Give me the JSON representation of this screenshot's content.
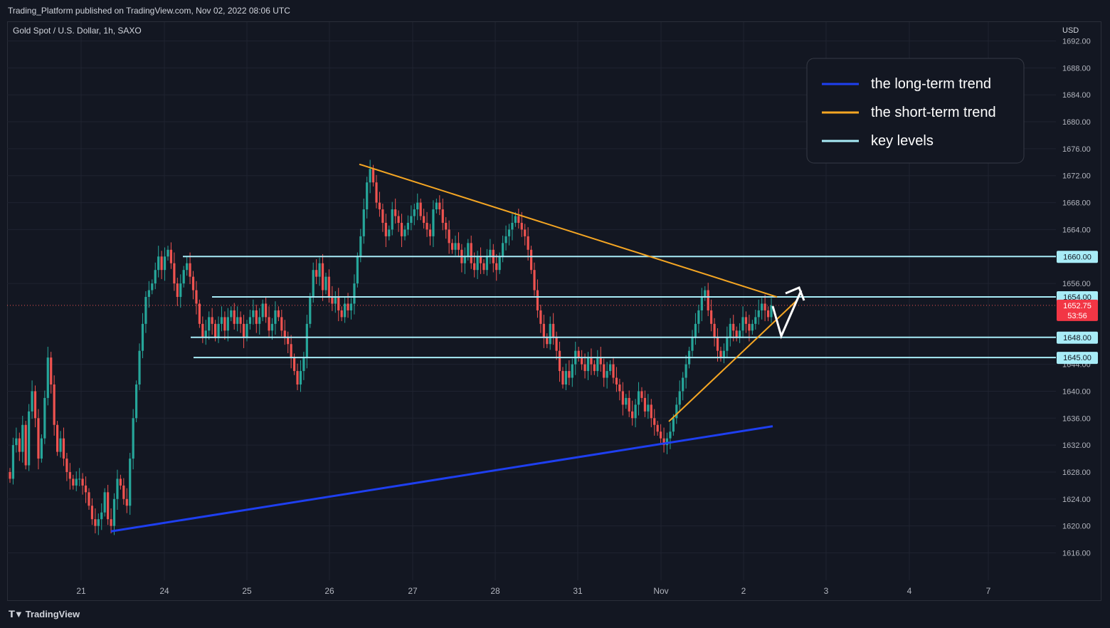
{
  "header": {
    "published_line": "Trading_Platform published on TradingView.com, Nov 02, 2022 08:06 UTC"
  },
  "footer": {
    "brand": "TradingView"
  },
  "colors": {
    "background": "#131722",
    "grid": "#1f2330",
    "up_candle": "#26a69a",
    "down_candle": "#ef5350",
    "long_trend": "#1e3ff0",
    "short_trend": "#f5a623",
    "key_level": "#a8ecf7",
    "price_tag": "#f23645",
    "arrow": "#ffffff"
  },
  "chart_data": {
    "type": "candlestick",
    "symbol_label": "Gold Spot / U.S. Dollar, 1h, SAXO",
    "currency": "USD",
    "y_range": [
      1612.5,
      1693
    ],
    "y_ticks": [
      1692,
      1688,
      1684,
      1680,
      1676,
      1672,
      1668,
      1664,
      1656,
      1644,
      1640,
      1636,
      1632,
      1628,
      1624,
      1620,
      1616
    ],
    "x_tick_labels": [
      "21",
      "24",
      "25",
      "26",
      "27",
      "28",
      "31",
      "Nov",
      "2",
      "3",
      "4",
      "7"
    ],
    "legend": {
      "placement": "top-right",
      "items": [
        {
          "label": "the long-term trend",
          "color": "#1e3ff0"
        },
        {
          "label": "the short-term trend",
          "color": "#f5a623"
        },
        {
          "label": "key levels",
          "color": "#a8ecf7"
        }
      ]
    },
    "key_levels": [
      1660.0,
      1654.0,
      1648.0,
      1645.0
    ],
    "key_level_labels": [
      "1660.00",
      "1654.00",
      "1648.00",
      "1645.00"
    ],
    "current_price": {
      "value": 1652.75,
      "label": "1652.75",
      "countdown": "53:56"
    },
    "long_term_trend": {
      "from": {
        "date": "Oct 21",
        "price": 1619.2
      },
      "to": {
        "date": "Nov 02",
        "price": 1634.8
      }
    },
    "short_term_trend_upper": {
      "from": {
        "date": "Oct 26",
        "price": 1673.7
      },
      "to": {
        "date": "Nov 02",
        "price": 1654.0
      }
    },
    "short_term_trend_lower": {
      "from": {
        "date": "Oct 31",
        "price": 1635.5
      },
      "to": {
        "date": "Nov 02",
        "price": 1653.5
      }
    },
    "closes": [
      1627,
      1632,
      1633,
      1631,
      1635,
      1629,
      1637,
      1640,
      1636,
      1630,
      1633,
      1639,
      1645,
      1641,
      1635,
      1631,
      1633,
      1630,
      1628,
      1627,
      1626,
      1627,
      1627,
      1626,
      1625,
      1623,
      1621,
      1620,
      1621,
      1622,
      1625,
      1621,
      1620,
      1624,
      1627,
      1626,
      1624,
      1623,
      1630,
      1636,
      1641,
      1646,
      1650,
      1654,
      1655,
      1656,
      1658,
      1660,
      1658,
      1660,
      1661,
      1659,
      1656,
      1654,
      1656,
      1658,
      1659,
      1657,
      1655,
      1653,
      1650,
      1648,
      1649,
      1651,
      1650,
      1648,
      1650,
      1651,
      1649,
      1651,
      1652,
      1650,
      1651,
      1650,
      1648,
      1650,
      1651,
      1652,
      1650,
      1651,
      1653,
      1651,
      1649,
      1650,
      1652,
      1651,
      1649,
      1648,
      1647,
      1645,
      1643,
      1641,
      1643,
      1645,
      1650,
      1654,
      1658,
      1657,
      1659,
      1655,
      1657,
      1654,
      1653,
      1654,
      1652,
      1651,
      1653,
      1652,
      1653,
      1656,
      1660,
      1663,
      1667,
      1671,
      1673,
      1671,
      1668,
      1667,
      1665,
      1663,
      1664,
      1667,
      1666,
      1665,
      1663,
      1664,
      1665,
      1666,
      1667,
      1668,
      1666,
      1665,
      1664,
      1663,
      1667,
      1668,
      1667,
      1665,
      1664,
      1662,
      1661,
      1662,
      1661,
      1659,
      1660,
      1662,
      1659,
      1658,
      1660,
      1659,
      1658,
      1660,
      1661,
      1659,
      1658,
      1660,
      1662,
      1663,
      1664,
      1665,
      1666,
      1665,
      1664,
      1663,
      1661,
      1658,
      1655,
      1652,
      1650,
      1648,
      1647,
      1650,
      1648,
      1646,
      1643,
      1641,
      1643,
      1642,
      1644,
      1646,
      1645,
      1644,
      1643,
      1645,
      1644,
      1643,
      1645,
      1644,
      1642,
      1643,
      1644,
      1642,
      1641,
      1640,
      1638,
      1639,
      1637,
      1636,
      1638,
      1640,
      1639,
      1637,
      1638,
      1636,
      1635,
      1634,
      1633,
      1632,
      1633,
      1634,
      1636,
      1638,
      1640,
      1642,
      1644,
      1646,
      1648,
      1650,
      1652,
      1654,
      1655,
      1652,
      1650,
      1648,
      1646,
      1645,
      1646,
      1648,
      1650,
      1649,
      1648,
      1649,
      1651,
      1650,
      1649,
      1650,
      1651,
      1652,
      1653,
      1652,
      1651,
      1652.75
    ]
  }
}
